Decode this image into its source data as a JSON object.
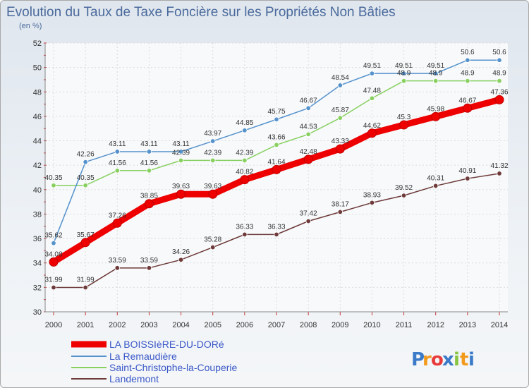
{
  "chart_data": {
    "type": "line",
    "title": "Evolution du Taux de Taxe Foncière sur les Propriétés Non Bâties",
    "subtitle": "(en %)",
    "x": [
      "2000",
      "2001",
      "2002",
      "2003",
      "2004",
      "2005",
      "2006",
      "2007",
      "2008",
      "2009",
      "2010",
      "2011",
      "2012",
      "2013",
      "2014"
    ],
    "ylim": [
      30,
      52
    ],
    "yticks": [
      "30",
      "32",
      "34",
      "36",
      "38",
      "40",
      "42",
      "44",
      "46",
      "48",
      "50",
      "52"
    ],
    "grid": true,
    "legend_position": "bottom-left",
    "series": [
      {
        "name": "LA BOISSIèRE-DU-DORé",
        "color": "#ee0000",
        "values": [
          34.08,
          35.67,
          37.26,
          38.85,
          39.63,
          39.63,
          40.82,
          41.64,
          42.48,
          43.33,
          44.62,
          45.3,
          45.98,
          46.67,
          47.36
        ],
        "labels": [
          "34.08",
          "35.67",
          "37.26",
          "38.85",
          "39.63",
          "39.63",
          "40.82",
          "41.64",
          "42.48",
          "43.33",
          "44.62",
          "45.3",
          "45.98",
          "46.67",
          "47.36"
        ]
      },
      {
        "name": "La Remaudière",
        "color": "#5592cc",
        "values": [
          35.62,
          42.26,
          43.11,
          43.11,
          43.11,
          43.97,
          44.85,
          45.75,
          46.67,
          48.54,
          49.51,
          49.51,
          49.51,
          50.6,
          50.6
        ],
        "labels": [
          "35.62",
          "42.26",
          "43.11",
          "43.11",
          "43.11",
          "43.97",
          "44.85",
          "45.75",
          "46.67",
          "48.54",
          "49.51",
          "49.51",
          "49.51",
          "50.6",
          "50.6"
        ]
      },
      {
        "name": "Saint-Christophe-la-Couperie",
        "color": "#88d060",
        "values": [
          40.35,
          40.35,
          41.56,
          41.56,
          42.39,
          42.39,
          42.39,
          43.66,
          44.53,
          45.87,
          47.48,
          48.9,
          48.9,
          48.9,
          48.9
        ],
        "labels": [
          "40.35",
          "40.35",
          "41.56",
          "41.56",
          "42.39",
          "42.39",
          "42.39",
          "43.66",
          "44.53",
          "45.87",
          "47.48",
          "48.9",
          "48.9",
          "48.9",
          "48.9"
        ]
      },
      {
        "name": "Landemont",
        "color": "#6e3a3a",
        "values": [
          31.99,
          31.99,
          33.59,
          33.59,
          34.26,
          35.28,
          36.33,
          36.33,
          37.42,
          38.17,
          38.93,
          39.52,
          40.31,
          40.91,
          41.32
        ],
        "labels": [
          "31.99",
          "31.99",
          "33.59",
          "33.59",
          "34.26",
          "35.28",
          "36.33",
          "36.33",
          "37.42",
          "38.17",
          "38.93",
          "39.52",
          "40.31",
          "40.91",
          "41.32"
        ]
      }
    ]
  },
  "logo": {
    "text": "Proxiti",
    "letters": [
      "P",
      "r",
      "o",
      "x",
      "i",
      "t",
      "i"
    ],
    "colors": [
      "#3a7ac8",
      "#f29a1c",
      "#e83a3a",
      "#3a7ac8",
      "#88c440",
      "#f29a1c",
      "#3a7ac8"
    ]
  }
}
